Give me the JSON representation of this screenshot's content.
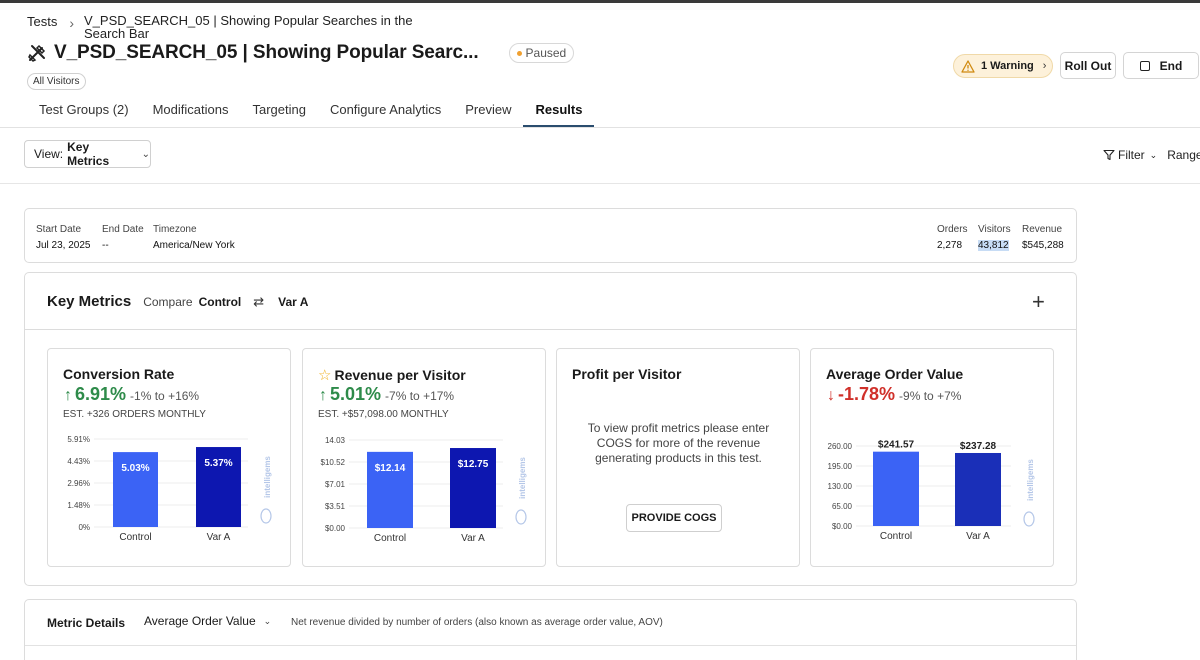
{
  "breadcrumb": {
    "root": "Tests",
    "current": "V_PSD_SEARCH_05 | Showing Popular Searches in the Search Bar"
  },
  "header": {
    "title": "V_PSD_SEARCH_05 | Showing Popular Searc...",
    "status": "Paused",
    "audience": "All Visitors"
  },
  "actions": {
    "warning": "1 Warning",
    "rollout": "Roll Out",
    "end": "End"
  },
  "tabs": [
    "Test Groups (2)",
    "Modifications",
    "Targeting",
    "Configure Analytics",
    "Preview",
    "Results"
  ],
  "active_tab": "Results",
  "toolbar": {
    "view_label": "View:",
    "view_value": "Key Metrics",
    "filter": "Filter",
    "range": "Range:"
  },
  "summary": {
    "start_label": "Start Date",
    "start_value": "Jul 23, 2025",
    "end_label": "End Date",
    "end_value": "--",
    "tz_label": "Timezone",
    "tz_value": "America/New York",
    "orders_label": "Orders",
    "orders_value": "2,278",
    "visitors_label": "Visitors",
    "visitors_value": "43,812",
    "revenue_label": "Revenue",
    "revenue_value": "$545,288"
  },
  "key_metrics": {
    "title": "Key Metrics",
    "compare": "Compare",
    "control": "Control",
    "variant": "Var A"
  },
  "colors": {
    "control_bar": "#3b63f5",
    "variant_bar": "#0d17b0",
    "aov_variant_bar": "#1a2fb8",
    "up": "#2e8b4a",
    "down": "#d0302a"
  },
  "metric_cards": [
    {
      "title": "Conversion Rate",
      "direction": "up",
      "lift": "6.91%",
      "range": "-1% to +16%",
      "estimate": "EST. +326 ORDERS MONTHLY"
    },
    {
      "title": "Revenue per Visitor",
      "starred": true,
      "direction": "up",
      "lift": "5.01%",
      "range": "-7% to +17%",
      "estimate": "EST. +$57,098.00 MONTHLY"
    },
    {
      "title": "Profit per Visitor",
      "message": "To view profit metrics please enter COGS for more of the revenue generating products in this test.",
      "button": "PROVIDE COGS"
    },
    {
      "title": "Average Order Value",
      "direction": "down",
      "lift": "-1.78%",
      "range": "-9% to +7%"
    }
  ],
  "watermark": "intelligems",
  "chart_data": [
    {
      "type": "bar",
      "categories": [
        "Control",
        "Var A"
      ],
      "values": [
        5.03,
        5.37
      ],
      "value_labels": [
        "5.03%",
        "5.37%"
      ],
      "ylim": [
        0,
        5.91
      ],
      "yticks": [
        "0%",
        "1.48%",
        "2.96%",
        "4.43%",
        "5.91%"
      ],
      "label_position": "inside"
    },
    {
      "type": "bar",
      "categories": [
        "Control",
        "Var A"
      ],
      "values": [
        12.14,
        12.75
      ],
      "value_labels": [
        "$12.14",
        "$12.75"
      ],
      "ylim": [
        0,
        14.03
      ],
      "yticks": [
        "$0.00",
        "$3.51",
        "$7.01",
        "$10.52",
        "14.03"
      ],
      "label_position": "inside"
    },
    {
      "type": "bar",
      "categories": [
        "Control",
        "Var A"
      ],
      "values": [
        241.57,
        237.28
      ],
      "value_labels": [
        "$241.57",
        "$237.28"
      ],
      "ylim": [
        0,
        260
      ],
      "yticks": [
        "$0.00",
        "65.00",
        "130.00",
        "195.00",
        "260.00"
      ],
      "label_position": "above"
    }
  ],
  "metric_details": {
    "title": "Metric Details",
    "selected": "Average Order Value",
    "description": "Net revenue divided by number of orders (also known as average order value, AOV)"
  }
}
